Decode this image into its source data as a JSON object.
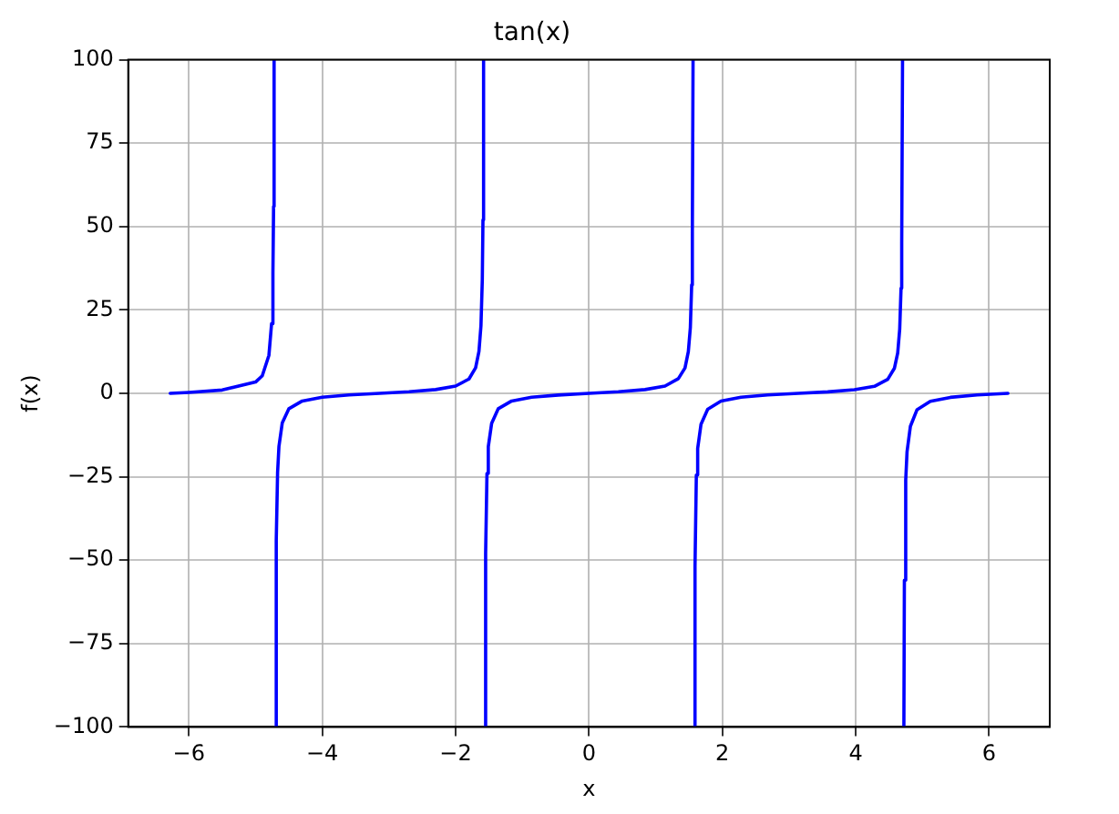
{
  "chart_data": {
    "type": "line",
    "title": "tan(x)",
    "xlabel": "x",
    "ylabel": "f(x)",
    "xlim": [
      -6.91,
      6.91
    ],
    "xticks": [
      -6,
      -4,
      -2,
      0,
      2,
      4,
      6
    ],
    "ylim": [
      -100,
      100
    ],
    "yticks": [
      -100,
      -75,
      -50,
      -25,
      0,
      25,
      50,
      75,
      100
    ],
    "grid": true,
    "line_style": "solid",
    "series": [
      {
        "color": "#0000ff",
        "x": [
          -6.28,
          -6,
          -5.5,
          -5,
          -4.9,
          -4.8,
          -4.76,
          -4.74,
          -4.73,
          -4.7224,
          -4.7124,
          -4.7024,
          -4.69,
          -4.67,
          -4.65,
          -4.6,
          -4.5,
          -4.3,
          -4,
          -3.6,
          -3.14,
          -2.7,
          -2.3,
          -2,
          -1.8,
          -1.7,
          -1.65,
          -1.62,
          -1.6,
          -1.59,
          -1.5808,
          -1.5708,
          -1.5608,
          -1.55,
          -1.53,
          -1.51,
          -1.46,
          -1.36,
          -1.16,
          -0.86,
          -0.46,
          0,
          0.44,
          0.84,
          1.14,
          1.34,
          1.44,
          1.49,
          1.52,
          1.54,
          1.55,
          1.5608,
          1.5708,
          1.5808,
          1.59,
          1.61,
          1.63,
          1.68,
          1.78,
          1.98,
          2.28,
          2.68,
          3.14,
          3.58,
          3.98,
          4.28,
          4.48,
          4.58,
          4.63,
          4.66,
          4.68,
          4.69,
          4.7024,
          4.7124,
          4.7224,
          4.73,
          4.75,
          4.77,
          4.82,
          4.92,
          5.12,
          5.42,
          5.82,
          6.283
        ],
        "values": [
          0,
          0.29,
          0.99,
          3.38,
          5.27,
          11.4,
          20.9,
          36,
          56,
          100,
          null,
          -100,
          -44,
          -23.7,
          -16,
          -8.9,
          -4.6,
          -2.3,
          -1.16,
          -0.49,
          0,
          0.49,
          1.12,
          2.19,
          4.3,
          7.7,
          12.6,
          20.3,
          34,
          52,
          100,
          null,
          -100,
          -48,
          -24,
          -16,
          -9,
          -4.6,
          -2.3,
          -1.17,
          -0.5,
          0,
          0.47,
          1.12,
          2.17,
          4.4,
          7.6,
          12.5,
          19.7,
          32.5,
          48,
          100,
          null,
          -100,
          -52,
          -24.5,
          -16.5,
          -9.3,
          -4.8,
          -2.3,
          -1.18,
          -0.49,
          0,
          0.45,
          1.1,
          2.1,
          4.2,
          7.5,
          12.1,
          19.3,
          31.5,
          45,
          100,
          null,
          -100,
          -56,
          -26,
          -17.5,
          -9.9,
          -4.9,
          -2.4,
          -1.2,
          -0.49,
          0
        ]
      }
    ]
  }
}
